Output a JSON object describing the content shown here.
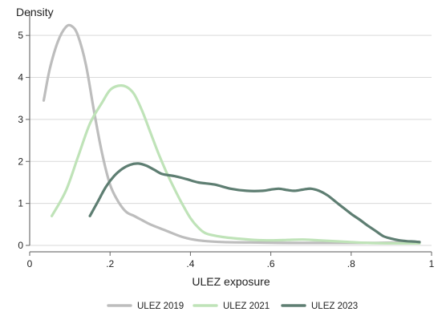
{
  "chart_data": {
    "type": "line",
    "title": "",
    "xlabel": "ULEZ exposure",
    "ylabel": "Density",
    "xlim": [
      0,
      1
    ],
    "ylim": [
      0,
      5.5
    ],
    "grid": true,
    "legend_position": "bottom",
    "x_ticks": [
      {
        "value": 0,
        "label": "0"
      },
      {
        "value": 0.2,
        "label": ".2"
      },
      {
        "value": 0.4,
        "label": ".4"
      },
      {
        "value": 0.6,
        "label": ".6"
      },
      {
        "value": 0.8,
        "label": ".8"
      },
      {
        "value": 1,
        "label": "1"
      }
    ],
    "y_ticks": [
      {
        "value": 0,
        "label": "0"
      },
      {
        "value": 1,
        "label": "1"
      },
      {
        "value": 2,
        "label": "2"
      },
      {
        "value": 3,
        "label": "3"
      },
      {
        "value": 4,
        "label": "4"
      },
      {
        "value": 5,
        "label": "5"
      }
    ],
    "series": [
      {
        "name": "ULEZ 2019",
        "color": "#bdbdbd",
        "points": [
          [
            0.035,
            3.45
          ],
          [
            0.05,
            4.2
          ],
          [
            0.07,
            4.85
          ],
          [
            0.09,
            5.2
          ],
          [
            0.105,
            5.22
          ],
          [
            0.12,
            5.0
          ],
          [
            0.14,
            4.3
          ],
          [
            0.16,
            3.2
          ],
          [
            0.18,
            2.2
          ],
          [
            0.2,
            1.45
          ],
          [
            0.22,
            1.05
          ],
          [
            0.24,
            0.8
          ],
          [
            0.26,
            0.7
          ],
          [
            0.28,
            0.6
          ],
          [
            0.3,
            0.5
          ],
          [
            0.34,
            0.35
          ],
          [
            0.38,
            0.2
          ],
          [
            0.42,
            0.12
          ],
          [
            0.48,
            0.08
          ],
          [
            0.55,
            0.07
          ],
          [
            0.65,
            0.06
          ],
          [
            0.75,
            0.06
          ],
          [
            0.85,
            0.06
          ],
          [
            0.92,
            0.07
          ],
          [
            0.97,
            0.08
          ]
        ]
      },
      {
        "name": "ULEZ 2021",
        "color": "#bfe3b8",
        "points": [
          [
            0.055,
            0.7
          ],
          [
            0.09,
            1.3
          ],
          [
            0.12,
            2.1
          ],
          [
            0.15,
            2.9
          ],
          [
            0.18,
            3.4
          ],
          [
            0.2,
            3.7
          ],
          [
            0.22,
            3.8
          ],
          [
            0.24,
            3.78
          ],
          [
            0.26,
            3.6
          ],
          [
            0.28,
            3.2
          ],
          [
            0.3,
            2.7
          ],
          [
            0.32,
            2.2
          ],
          [
            0.34,
            1.75
          ],
          [
            0.36,
            1.35
          ],
          [
            0.38,
            0.98
          ],
          [
            0.4,
            0.65
          ],
          [
            0.42,
            0.42
          ],
          [
            0.44,
            0.28
          ],
          [
            0.48,
            0.2
          ],
          [
            0.52,
            0.16
          ],
          [
            0.56,
            0.13
          ],
          [
            0.6,
            0.12
          ],
          [
            0.64,
            0.13
          ],
          [
            0.68,
            0.14
          ],
          [
            0.72,
            0.12
          ],
          [
            0.78,
            0.09
          ],
          [
            0.84,
            0.06
          ],
          [
            0.9,
            0.05
          ],
          [
            0.95,
            0.05
          ],
          [
            0.97,
            0.05
          ]
        ]
      },
      {
        "name": "ULEZ 2023",
        "color": "#5e7e72",
        "points": [
          [
            0.15,
            0.7
          ],
          [
            0.17,
            1.05
          ],
          [
            0.19,
            1.4
          ],
          [
            0.21,
            1.65
          ],
          [
            0.23,
            1.82
          ],
          [
            0.25,
            1.92
          ],
          [
            0.27,
            1.95
          ],
          [
            0.29,
            1.9
          ],
          [
            0.31,
            1.8
          ],
          [
            0.33,
            1.7
          ],
          [
            0.36,
            1.65
          ],
          [
            0.39,
            1.58
          ],
          [
            0.42,
            1.5
          ],
          [
            0.46,
            1.45
          ],
          [
            0.5,
            1.35
          ],
          [
            0.54,
            1.3
          ],
          [
            0.58,
            1.3
          ],
          [
            0.6,
            1.33
          ],
          [
            0.62,
            1.35
          ],
          [
            0.64,
            1.32
          ],
          [
            0.66,
            1.3
          ],
          [
            0.68,
            1.33
          ],
          [
            0.7,
            1.35
          ],
          [
            0.72,
            1.3
          ],
          [
            0.74,
            1.2
          ],
          [
            0.76,
            1.05
          ],
          [
            0.78,
            0.9
          ],
          [
            0.8,
            0.75
          ],
          [
            0.82,
            0.62
          ],
          [
            0.84,
            0.48
          ],
          [
            0.86,
            0.35
          ],
          [
            0.88,
            0.22
          ],
          [
            0.9,
            0.16
          ],
          [
            0.92,
            0.12
          ],
          [
            0.94,
            0.1
          ],
          [
            0.96,
            0.09
          ],
          [
            0.97,
            0.08
          ]
        ]
      }
    ]
  }
}
